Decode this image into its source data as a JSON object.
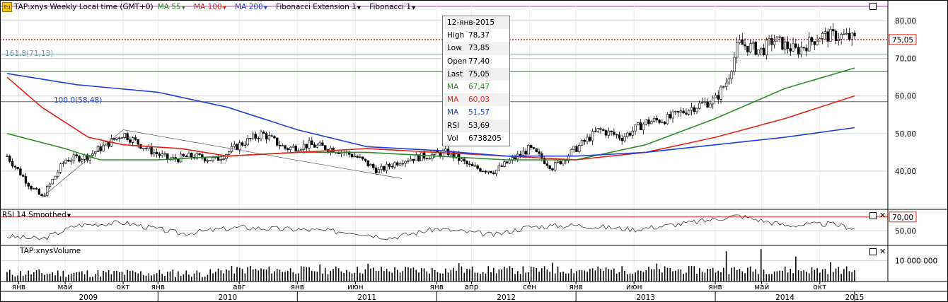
{
  "header": {
    "symbol": "TAP:xnys Weekly Local time (GMT+0)",
    "ind1": "MA 55",
    "ind2": "MA 100",
    "ind3": "MA 200",
    "ind4": "Fibonacci Extension 1",
    "ind5": "Fibonacci 1",
    "icon": "eq-icon"
  },
  "colors": {
    "ma55": "#2e8b2e",
    "ma100": "#e2231a",
    "ma200": "#1f3fd6",
    "price_line": "#e2231a",
    "fib": "#7fa6a6",
    "grid": "#c8c8c8"
  },
  "tooltip": {
    "date": "12-янв-2015",
    "rows": [
      {
        "k": "High",
        "v": "78,37",
        "color": "#000000"
      },
      {
        "k": "Low",
        "v": "73,85",
        "color": "#000000"
      },
      {
        "k": "Open",
        "v": "77,40",
        "color": "#000000"
      },
      {
        "k": "Last",
        "v": "75,05",
        "color": "#000000"
      },
      {
        "k": "MA",
        "v": "67,47",
        "color": "#2e8b2e"
      },
      {
        "k": "MA",
        "v": "60,03",
        "color": "#e2231a"
      },
      {
        "k": "MA",
        "v": "51,57",
        "color": "#1f3fd6"
      },
      {
        "k": "RSI",
        "v": "53,69",
        "color": "#000000"
      },
      {
        "k": "Vol",
        "v": "6738205",
        "color": "#000000"
      }
    ]
  },
  "fib_labels": {
    "upper": "161.8(71,13)",
    "lower": "100.0(58,48)"
  },
  "price_tag": "75,05",
  "rsi": {
    "title": "RSI 14 Smoothed",
    "upper_tag": "70,00",
    "tick": "50,00"
  },
  "volume": {
    "title": "TAP:xnysVolume",
    "tick": "10 000 000"
  },
  "x_months": [
    "янв",
    "май",
    "окт",
    "янв",
    "авг",
    "янв",
    "июн",
    "янв",
    "апр",
    "сен",
    "янв",
    "июн",
    "янв",
    "май",
    "окт"
  ],
  "x_years": [
    "2009",
    "2010",
    "2011",
    "2012",
    "2013",
    "2014",
    "2015"
  ],
  "chart_data": {
    "type": "line",
    "title": "TAP:xnys Weekly",
    "ylabel": "",
    "ylim": [
      30,
      85
    ],
    "y_ticks": [
      "40,00",
      "50,00",
      "60,00",
      "70,00",
      "80,00"
    ],
    "y_tick_values": [
      40,
      50,
      60,
      70,
      80
    ],
    "x_range": [
      "2008-12",
      "2015-01"
    ],
    "month_ticks": [
      {
        "label": "янв",
        "date": "2009-01"
      },
      {
        "label": "май",
        "date": "2009-05"
      },
      {
        "label": "окт",
        "date": "2009-10"
      },
      {
        "label": "янв",
        "date": "2010-01"
      },
      {
        "label": "авг",
        "date": "2010-08"
      },
      {
        "label": "янв",
        "date": "2011-01"
      },
      {
        "label": "июн",
        "date": "2011-06"
      },
      {
        "label": "янв",
        "date": "2012-01"
      },
      {
        "label": "апр",
        "date": "2012-04"
      },
      {
        "label": "сен",
        "date": "2012-09"
      },
      {
        "label": "янв",
        "date": "2013-01"
      },
      {
        "label": "июн",
        "date": "2013-06"
      },
      {
        "label": "янв",
        "date": "2014-01"
      },
      {
        "label": "май",
        "date": "2014-05"
      },
      {
        "label": "окт",
        "date": "2014-10"
      }
    ],
    "year_ticks": [
      {
        "label": "2009",
        "date": "2009-07"
      },
      {
        "label": "2010",
        "date": "2010-07"
      },
      {
        "label": "2011",
        "date": "2011-07"
      },
      {
        "label": "2012",
        "date": "2012-07"
      },
      {
        "label": "2013",
        "date": "2013-07"
      },
      {
        "label": "2014",
        "date": "2014-07"
      },
      {
        "label": "2015",
        "date": "2015-01"
      }
    ],
    "price_points": [
      {
        "date": "2008-12",
        "value": 44
      },
      {
        "date": "2009-02",
        "value": 36
      },
      {
        "date": "2009-03",
        "value": 33
      },
      {
        "date": "2009-05",
        "value": 43
      },
      {
        "date": "2009-07",
        "value": 44
      },
      {
        "date": "2009-09",
        "value": 48
      },
      {
        "date": "2009-10",
        "value": 50
      },
      {
        "date": "2009-12",
        "value": 46
      },
      {
        "date": "2010-02",
        "value": 43
      },
      {
        "date": "2010-04",
        "value": 44
      },
      {
        "date": "2010-06",
        "value": 43
      },
      {
        "date": "2010-08",
        "value": 47
      },
      {
        "date": "2010-10",
        "value": 50
      },
      {
        "date": "2010-12",
        "value": 46
      },
      {
        "date": "2011-02",
        "value": 47
      },
      {
        "date": "2011-04",
        "value": 46
      },
      {
        "date": "2011-06",
        "value": 44
      },
      {
        "date": "2011-08",
        "value": 40
      },
      {
        "date": "2011-10",
        "value": 43
      },
      {
        "date": "2011-12",
        "value": 44
      },
      {
        "date": "2012-02",
        "value": 45
      },
      {
        "date": "2012-04",
        "value": 41
      },
      {
        "date": "2012-06",
        "value": 40
      },
      {
        "date": "2012-08",
        "value": 44
      },
      {
        "date": "2012-09",
        "value": 46
      },
      {
        "date": "2012-11",
        "value": 41
      },
      {
        "date": "2013-01",
        "value": 46
      },
      {
        "date": "2013-03",
        "value": 51
      },
      {
        "date": "2013-05",
        "value": 49
      },
      {
        "date": "2013-07",
        "value": 53
      },
      {
        "date": "2013-09",
        "value": 54
      },
      {
        "date": "2013-11",
        "value": 57
      },
      {
        "date": "2014-01",
        "value": 59
      },
      {
        "date": "2014-02",
        "value": 64
      },
      {
        "date": "2014-03",
        "value": 74
      },
      {
        "date": "2014-05",
        "value": 72
      },
      {
        "date": "2014-06",
        "value": 75
      },
      {
        "date": "2014-08",
        "value": 72
      },
      {
        "date": "2014-10",
        "value": 76
      },
      {
        "date": "2014-12",
        "value": 76
      },
      {
        "date": "2015-01",
        "value": 75.05
      }
    ],
    "series": [
      {
        "name": "MA 55",
        "points": [
          {
            "date": "2008-12",
            "value": 50
          },
          {
            "date": "2009-05",
            "value": 46
          },
          {
            "date": "2009-08",
            "value": 43
          },
          {
            "date": "2010-01",
            "value": 43
          },
          {
            "date": "2010-07",
            "value": 44
          },
          {
            "date": "2011-01",
            "value": 45
          },
          {
            "date": "2011-07",
            "value": 45
          },
          {
            "date": "2012-01",
            "value": 44
          },
          {
            "date": "2012-07",
            "value": 43
          },
          {
            "date": "2013-01",
            "value": 43
          },
          {
            "date": "2013-07",
            "value": 47
          },
          {
            "date": "2014-01",
            "value": 54
          },
          {
            "date": "2014-07",
            "value": 62
          },
          {
            "date": "2015-01",
            "value": 67.47
          }
        ]
      },
      {
        "name": "MA 100",
        "points": [
          {
            "date": "2008-12",
            "value": 65
          },
          {
            "date": "2009-03",
            "value": 57
          },
          {
            "date": "2009-07",
            "value": 49
          },
          {
            "date": "2009-10",
            "value": 47
          },
          {
            "date": "2010-03",
            "value": 46
          },
          {
            "date": "2010-07",
            "value": 44
          },
          {
            "date": "2011-01",
            "value": 45
          },
          {
            "date": "2011-07",
            "value": 46
          },
          {
            "date": "2012-01",
            "value": 45
          },
          {
            "date": "2012-07",
            "value": 44
          },
          {
            "date": "2013-01",
            "value": 43
          },
          {
            "date": "2013-07",
            "value": 45
          },
          {
            "date": "2014-01",
            "value": 49
          },
          {
            "date": "2014-07",
            "value": 54
          },
          {
            "date": "2015-01",
            "value": 60.03
          }
        ]
      },
      {
        "name": "MA 200",
        "points": [
          {
            "date": "2008-12",
            "value": 66
          },
          {
            "date": "2009-06",
            "value": 63
          },
          {
            "date": "2010-01",
            "value": 61
          },
          {
            "date": "2010-07",
            "value": 57
          },
          {
            "date": "2011-01",
            "value": 51
          },
          {
            "date": "2011-07",
            "value": 46.5
          },
          {
            "date": "2012-01",
            "value": 45.5
          },
          {
            "date": "2012-07",
            "value": 44
          },
          {
            "date": "2013-01",
            "value": 44
          },
          {
            "date": "2013-07",
            "value": 45
          },
          {
            "date": "2014-01",
            "value": 47
          },
          {
            "date": "2014-07",
            "value": 49
          },
          {
            "date": "2015-01",
            "value": 51.57
          }
        ]
      }
    ],
    "hlines": [
      {
        "name": "price",
        "value": 75.05
      },
      {
        "name": "fib 161.8",
        "value": 71.13
      },
      {
        "name": "fib 100.0",
        "value": 58.48
      },
      {
        "name": "green level",
        "value": 66.5
      }
    ],
    "rsi_points": [
      {
        "date": "2008-12",
        "value": 42
      },
      {
        "date": "2009-03",
        "value": 38
      },
      {
        "date": "2009-06",
        "value": 58
      },
      {
        "date": "2009-10",
        "value": 62
      },
      {
        "date": "2010-03",
        "value": 46
      },
      {
        "date": "2010-08",
        "value": 55
      },
      {
        "date": "2011-01",
        "value": 52
      },
      {
        "date": "2011-06",
        "value": 48
      },
      {
        "date": "2011-09",
        "value": 40
      },
      {
        "date": "2012-01",
        "value": 53
      },
      {
        "date": "2012-06",
        "value": 44
      },
      {
        "date": "2012-09",
        "value": 56
      },
      {
        "date": "2013-01",
        "value": 58
      },
      {
        "date": "2013-06",
        "value": 52
      },
      {
        "date": "2013-11",
        "value": 62
      },
      {
        "date": "2014-03",
        "value": 72
      },
      {
        "date": "2014-07",
        "value": 58
      },
      {
        "date": "2014-11",
        "value": 60
      },
      {
        "date": "2015-01",
        "value": 53.69
      }
    ],
    "volume_bars": [
      {
        "date": "2010-09",
        "value": 7.5
      },
      {
        "date": "2011-03",
        "value": 8.2
      },
      {
        "date": "2011-07",
        "value": 8.5
      },
      {
        "date": "2012-03",
        "value": 8.8
      },
      {
        "date": "2012-11",
        "value": 9.0
      },
      {
        "date": "2013-08",
        "value": 8.6
      },
      {
        "date": "2014-02",
        "value": 14.5
      },
      {
        "date": "2014-05",
        "value": 15.6
      },
      {
        "date": "2014-08",
        "value": 12.0
      },
      {
        "date": "2014-11",
        "value": 9.3
      }
    ]
  }
}
